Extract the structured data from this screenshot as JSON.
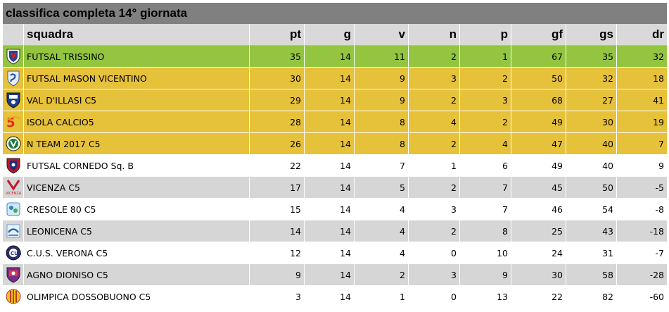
{
  "title": "classifica completa 14° giornata",
  "headers": {
    "team": "squadra",
    "pt": "pt",
    "g": "g",
    "v": "v",
    "n": "n",
    "p": "p",
    "gf": "gf",
    "gs": "gs",
    "dr": "dr"
  },
  "colors": {
    "leader": "#93c540",
    "playoff": "#e6c13a",
    "grey_row": "#d6d6d6",
    "title_bar": "#808080"
  },
  "rows": [
    {
      "team": "FUTSAL TRISSINO",
      "pt": "35",
      "g": "14",
      "v": "11",
      "n": "2",
      "p": "1",
      "gf": "67",
      "gs": "35",
      "dr": "32",
      "logo_icon": "futsal-trissino-logo"
    },
    {
      "team": "FUTSAL MASON VICENTINO",
      "pt": "30",
      "g": "14",
      "v": "9",
      "n": "3",
      "p": "2",
      "gf": "50",
      "gs": "32",
      "dr": "18",
      "logo_icon": "futsal-mason-vicentino-logo"
    },
    {
      "team": "VAL D'ILLASI C5",
      "pt": "29",
      "g": "14",
      "v": "9",
      "n": "2",
      "p": "3",
      "gf": "68",
      "gs": "27",
      "dr": "41",
      "logo_icon": "val-dillasi-logo"
    },
    {
      "team": "ISOLA CALCIO5",
      "pt": "28",
      "g": "14",
      "v": "8",
      "n": "4",
      "p": "2",
      "gf": "49",
      "gs": "30",
      "dr": "19",
      "logo_icon": "isola-calcio5-logo"
    },
    {
      "team": "N TEAM 2017 C5",
      "pt": "26",
      "g": "14",
      "v": "8",
      "n": "2",
      "p": "4",
      "gf": "47",
      "gs": "40",
      "dr": "7",
      "logo_icon": "n-team-logo"
    },
    {
      "team": "FUTSAL CORNEDO Sq. B",
      "pt": "22",
      "g": "14",
      "v": "7",
      "n": "1",
      "p": "6",
      "gf": "49",
      "gs": "40",
      "dr": "9",
      "logo_icon": "futsal-cornedo-logo"
    },
    {
      "team": "VICENZA C5",
      "pt": "17",
      "g": "14",
      "v": "5",
      "n": "2",
      "p": "7",
      "gf": "45",
      "gs": "50",
      "dr": "-5",
      "logo_icon": "vicenza-c5-logo",
      "logo_text": "VICENZA"
    },
    {
      "team": "CRESOLE 80 C5",
      "pt": "15",
      "g": "14",
      "v": "4",
      "n": "3",
      "p": "7",
      "gf": "46",
      "gs": "54",
      "dr": "-8",
      "logo_icon": "cresole-logo"
    },
    {
      "team": "LEONICENA C5",
      "pt": "14",
      "g": "14",
      "v": "4",
      "n": "2",
      "p": "8",
      "gf": "25",
      "gs": "43",
      "dr": "-18",
      "logo_icon": "leonicena-logo"
    },
    {
      "team": "C.U.S. VERONA C5",
      "pt": "12",
      "g": "14",
      "v": "4",
      "n": "0",
      "p": "10",
      "gf": "24",
      "gs": "31",
      "dr": "-7",
      "logo_icon": "cus-verona-logo"
    },
    {
      "team": "AGNO DIONISO C5",
      "pt": "9",
      "g": "14",
      "v": "2",
      "n": "3",
      "p": "9",
      "gf": "30",
      "gs": "58",
      "dr": "-28",
      "logo_icon": "agno-dioniso-logo"
    },
    {
      "team": "OLIMPICA DOSSOBUONO C5",
      "pt": "3",
      "g": "14",
      "v": "1",
      "n": "0",
      "p": "13",
      "gf": "22",
      "gs": "82",
      "dr": "-60",
      "logo_icon": "olimpica-dossobuono-logo"
    }
  ]
}
